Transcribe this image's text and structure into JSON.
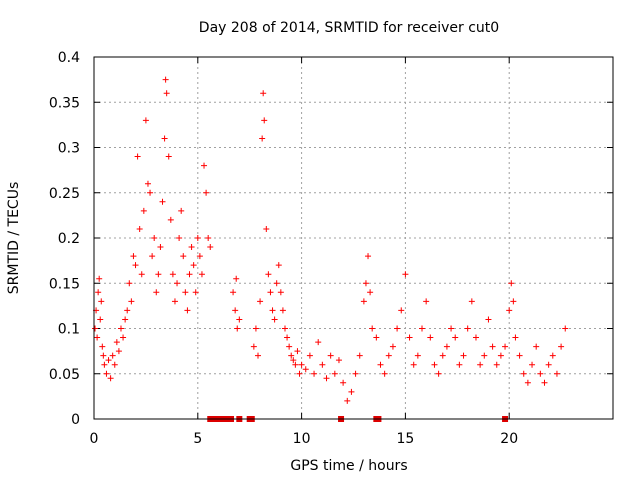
{
  "chart_data": {
    "type": "scatter",
    "title": "Day 208 of 2014, SRMTID for receiver cut0",
    "xlabel": "GPS time / hours",
    "ylabel": "SRMTID / TECUs",
    "xlim": [
      0,
      25
    ],
    "ylim": [
      0,
      0.4
    ],
    "xticks": [
      0,
      5,
      10,
      15,
      20
    ],
    "xtick_labels": [
      "0",
      "5",
      "10",
      "15",
      "20"
    ],
    "yticks": [
      0,
      0.05,
      0.1,
      0.15,
      0.2,
      0.25,
      0.3,
      0.35,
      0.4
    ],
    "ytick_labels": [
      "0",
      "0.05",
      "0.1",
      "0.15",
      "0.2",
      "0.25",
      "0.3",
      "0.35",
      "0.4"
    ],
    "grid": true,
    "marker": "+",
    "color": "#ff0000",
    "series": [
      {
        "name": "SRMTID",
        "points": [
          [
            0.05,
            0.1
          ],
          [
            0.1,
            0.12
          ],
          [
            0.15,
            0.09
          ],
          [
            0.2,
            0.14
          ],
          [
            0.25,
            0.155
          ],
          [
            0.3,
            0.11
          ],
          [
            0.35,
            0.13
          ],
          [
            0.4,
            0.08
          ],
          [
            0.45,
            0.07
          ],
          [
            0.5,
            0.06
          ],
          [
            0.6,
            0.05
          ],
          [
            0.7,
            0.065
          ],
          [
            0.8,
            0.045
          ],
          [
            0.9,
            0.07
          ],
          [
            1.0,
            0.06
          ],
          [
            1.1,
            0.085
          ],
          [
            1.2,
            0.075
          ],
          [
            1.3,
            0.1
          ],
          [
            1.4,
            0.09
          ],
          [
            1.5,
            0.11
          ],
          [
            1.6,
            0.12
          ],
          [
            1.7,
            0.15
          ],
          [
            1.8,
            0.13
          ],
          [
            1.9,
            0.18
          ],
          [
            2.0,
            0.17
          ],
          [
            2.1,
            0.29
          ],
          [
            2.2,
            0.21
          ],
          [
            2.3,
            0.16
          ],
          [
            2.4,
            0.23
          ],
          [
            2.5,
            0.33
          ],
          [
            2.6,
            0.26
          ],
          [
            2.7,
            0.25
          ],
          [
            2.8,
            0.18
          ],
          [
            2.9,
            0.2
          ],
          [
            3.0,
            0.14
          ],
          [
            3.1,
            0.16
          ],
          [
            3.2,
            0.19
          ],
          [
            3.3,
            0.24
          ],
          [
            3.4,
            0.31
          ],
          [
            3.45,
            0.375
          ],
          [
            3.5,
            0.36
          ],
          [
            3.6,
            0.29
          ],
          [
            3.7,
            0.22
          ],
          [
            3.8,
            0.16
          ],
          [
            3.9,
            0.13
          ],
          [
            4.0,
            0.15
          ],
          [
            4.1,
            0.2
          ],
          [
            4.2,
            0.23
          ],
          [
            4.3,
            0.18
          ],
          [
            4.4,
            0.14
          ],
          [
            4.5,
            0.12
          ],
          [
            4.6,
            0.16
          ],
          [
            4.7,
            0.19
          ],
          [
            4.8,
            0.17
          ],
          [
            4.9,
            0.14
          ],
          [
            5.0,
            0.2
          ],
          [
            5.1,
            0.18
          ],
          [
            5.2,
            0.16
          ],
          [
            5.3,
            0.28
          ],
          [
            5.4,
            0.25
          ],
          [
            5.5,
            0.2
          ],
          [
            5.6,
            0.19
          ],
          [
            6.7,
            0.14
          ],
          [
            6.8,
            0.12
          ],
          [
            6.85,
            0.155
          ],
          [
            6.9,
            0.1
          ],
          [
            7.0,
            0.11
          ],
          [
            7.7,
            0.08
          ],
          [
            7.8,
            0.1
          ],
          [
            7.9,
            0.07
          ],
          [
            8.0,
            0.13
          ],
          [
            8.1,
            0.31
          ],
          [
            8.15,
            0.36
          ],
          [
            8.2,
            0.33
          ],
          [
            8.3,
            0.21
          ],
          [
            8.4,
            0.16
          ],
          [
            8.5,
            0.14
          ],
          [
            8.6,
            0.12
          ],
          [
            8.7,
            0.11
          ],
          [
            8.8,
            0.15
          ],
          [
            8.9,
            0.17
          ],
          [
            9.0,
            0.14
          ],
          [
            9.1,
            0.12
          ],
          [
            9.2,
            0.1
          ],
          [
            9.3,
            0.09
          ],
          [
            9.4,
            0.08
          ],
          [
            9.5,
            0.07
          ],
          [
            9.6,
            0.065
          ],
          [
            9.7,
            0.06
          ],
          [
            9.8,
            0.075
          ],
          [
            9.9,
            0.05
          ],
          [
            10.0,
            0.06
          ],
          [
            10.2,
            0.055
          ],
          [
            10.4,
            0.07
          ],
          [
            10.6,
            0.05
          ],
          [
            10.8,
            0.085
          ],
          [
            11.0,
            0.06
          ],
          [
            11.2,
            0.045
          ],
          [
            11.4,
            0.07
          ],
          [
            11.6,
            0.05
          ],
          [
            11.8,
            0.065
          ],
          [
            12.0,
            0.04
          ],
          [
            12.2,
            0.02
          ],
          [
            12.4,
            0.03
          ],
          [
            12.6,
            0.05
          ],
          [
            12.8,
            0.07
          ],
          [
            13.0,
            0.13
          ],
          [
            13.1,
            0.15
          ],
          [
            13.2,
            0.18
          ],
          [
            13.3,
            0.14
          ],
          [
            13.4,
            0.1
          ],
          [
            13.6,
            0.09
          ],
          [
            13.8,
            0.06
          ],
          [
            14.0,
            0.05
          ],
          [
            14.2,
            0.07
          ],
          [
            14.4,
            0.08
          ],
          [
            14.6,
            0.1
          ],
          [
            14.8,
            0.12
          ],
          [
            15.0,
            0.16
          ],
          [
            15.2,
            0.09
          ],
          [
            15.4,
            0.06
          ],
          [
            15.6,
            0.07
          ],
          [
            15.8,
            0.1
          ],
          [
            16.0,
            0.13
          ],
          [
            16.2,
            0.09
          ],
          [
            16.4,
            0.06
          ],
          [
            16.6,
            0.05
          ],
          [
            16.8,
            0.07
          ],
          [
            17.0,
            0.08
          ],
          [
            17.2,
            0.1
          ],
          [
            17.4,
            0.09
          ],
          [
            17.6,
            0.06
          ],
          [
            17.8,
            0.07
          ],
          [
            18.0,
            0.1
          ],
          [
            18.2,
            0.13
          ],
          [
            18.4,
            0.09
          ],
          [
            18.6,
            0.06
          ],
          [
            18.8,
            0.07
          ],
          [
            19.0,
            0.11
          ],
          [
            19.2,
            0.08
          ],
          [
            19.4,
            0.06
          ],
          [
            19.6,
            0.07
          ],
          [
            19.8,
            0.08
          ],
          [
            20.0,
            0.12
          ],
          [
            20.1,
            0.15
          ],
          [
            20.2,
            0.13
          ],
          [
            20.3,
            0.09
          ],
          [
            20.5,
            0.07
          ],
          [
            20.7,
            0.05
          ],
          [
            20.9,
            0.04
          ],
          [
            21.1,
            0.06
          ],
          [
            21.3,
            0.08
          ],
          [
            21.5,
            0.05
          ],
          [
            21.7,
            0.04
          ],
          [
            21.9,
            0.06
          ],
          [
            22.1,
            0.07
          ],
          [
            22.3,
            0.05
          ],
          [
            22.5,
            0.08
          ],
          [
            22.7,
            0.1
          ]
        ]
      }
    ],
    "zero_points_x": [
      5.6,
      5.7,
      5.8,
      5.9,
      6.0,
      6.1,
      6.2,
      6.3,
      6.4,
      6.5,
      6.6,
      7.0,
      7.5,
      7.6,
      11.9,
      13.6,
      13.7,
      19.8
    ]
  }
}
